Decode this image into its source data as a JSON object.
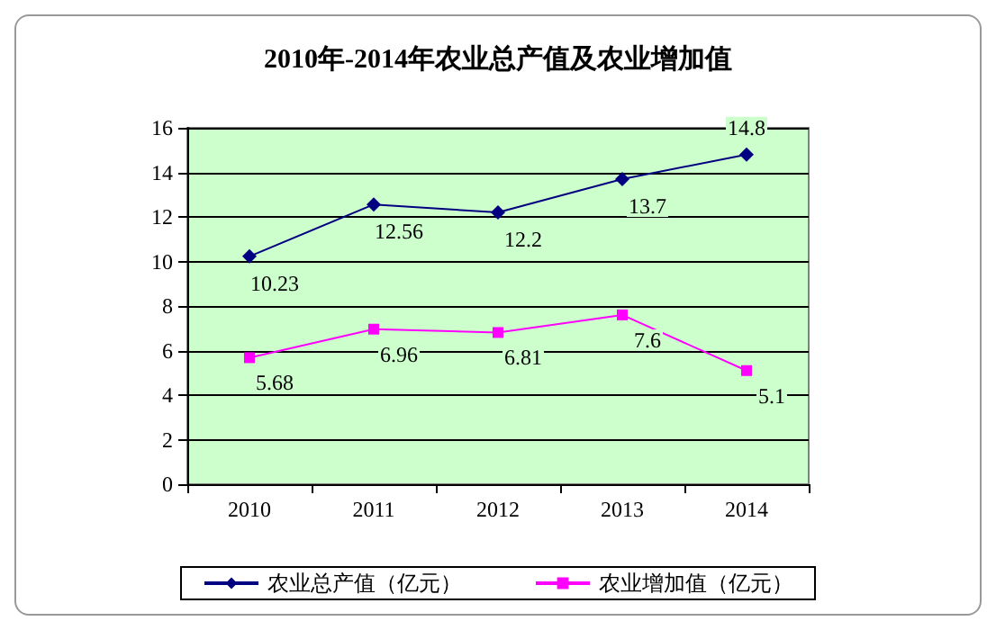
{
  "chart_data": {
    "type": "line",
    "title": "2010年-2014年农业总产值及农业增加值",
    "categories": [
      "2010",
      "2011",
      "2012",
      "2013",
      "2014"
    ],
    "series": [
      {
        "name": "农业总产值（亿元）",
        "color": "#000080",
        "marker": "diamond",
        "values": [
          10.23,
          12.56,
          12.2,
          13.7,
          14.8
        ]
      },
      {
        "name": "农业增加值（亿元）",
        "color": "#ff00ff",
        "marker": "square",
        "values": [
          5.68,
          6.96,
          6.81,
          7.6,
          5.1
        ]
      }
    ],
    "ylim": [
      0,
      16
    ],
    "yticks": [
      0,
      2,
      4,
      6,
      8,
      10,
      12,
      14,
      16
    ],
    "grid": "y",
    "legend": "bottom",
    "data_labels": true,
    "line_style": "solid"
  }
}
